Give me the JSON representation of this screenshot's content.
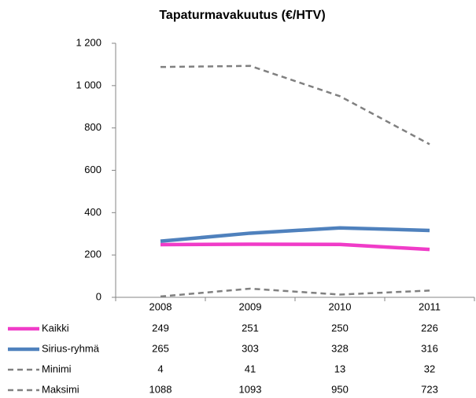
{
  "chart_data": {
    "type": "line",
    "title": "Tapaturmavakuutus  (€/HTV)",
    "categories": [
      "2008",
      "2009",
      "2010",
      "2011"
    ],
    "series": [
      {
        "name": "Kaikki",
        "color": "#f03cc8",
        "line_style": "solid",
        "values": [
          249,
          251,
          250,
          226
        ]
      },
      {
        "name": "Sirius-ryhmä",
        "color": "#4f81bd",
        "line_style": "solid",
        "values": [
          265,
          303,
          328,
          316
        ]
      },
      {
        "name": "Minimi",
        "color": "#808080",
        "line_style": "dashed",
        "values": [
          4,
          41,
          13,
          32
        ]
      },
      {
        "name": "Maksimi",
        "color": "#808080",
        "line_style": "dashed",
        "values": [
          1088,
          1093,
          950,
          723
        ]
      }
    ],
    "ylim": [
      0,
      1200
    ],
    "yticks": [
      0,
      200,
      400,
      600,
      800,
      {
        "value": 1000,
        "label": "1 000"
      },
      {
        "value": 1200,
        "label": "1 200"
      }
    ],
    "grid": false,
    "data_table": true
  }
}
